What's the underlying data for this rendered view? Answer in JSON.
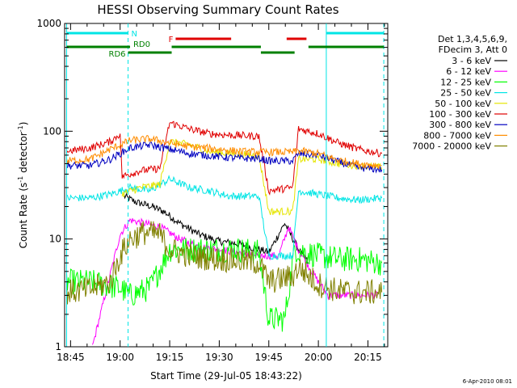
{
  "chart_data": {
    "type": "line",
    "title": "HESSI Observing Summary Count Rates",
    "xlabel": "Start Time (29-Jul-05 18:43:22)",
    "ylabel_prefix": "Count Rate (s",
    "ylabel_mid": " detector",
    "ylabel_suffix": ")",
    "ylabel_sup": "-1",
    "y_scale": "log",
    "ylim": [
      1,
      1000
    ],
    "xlim_minutes": [
      18.72,
      20.35
    ],
    "x_tick_labels": [
      "18:45",
      "19:00",
      "19:15",
      "19:30",
      "19:45",
      "20:00",
      "20:15"
    ],
    "x_tick_values": [
      18.75,
      19.0,
      19.25,
      19.5,
      19.75,
      20.0,
      20.25
    ],
    "y_tick_labels": [
      "1",
      "10",
      "100",
      "1000"
    ],
    "y_tick_values": [
      1,
      10,
      100,
      1000
    ],
    "legend_header": [
      "Det 1,3,4,5,6,9,",
      "FDecim 3, Att 0"
    ],
    "legend_placement": "right",
    "timestamp": "6-Apr-2010 08:01",
    "markers": {
      "N": {
        "label": "N",
        "color": "#00e5e5",
        "intervals": [
          [
            18.73,
            19.04
          ],
          [
            20.04,
            20.33
          ]
        ]
      },
      "F": {
        "label": "F",
        "color": "#e00000",
        "intervals": [
          [
            19.28,
            19.56
          ],
          [
            19.84,
            19.94
          ]
        ]
      },
      "RD0": {
        "label": "RD0",
        "color": "#008000",
        "intervals": [
          [
            18.73,
            19.05
          ],
          [
            19.26,
            19.71
          ],
          [
            19.95,
            20.33
          ]
        ]
      },
      "RD6": {
        "label": "RD6",
        "color": "#008000",
        "intervals": [
          [
            19.04,
            19.26
          ],
          [
            19.71,
            19.88
          ]
        ]
      },
      "night_boundaries": [
        18.73,
        20.04
      ],
      "saa_dashed": [
        19.04,
        20.33
      ]
    },
    "series": [
      {
        "name": "3 - 6 keV",
        "color": "#000000",
        "points": [
          [
            19.02,
            25
          ],
          [
            19.08,
            22
          ],
          [
            19.16,
            20
          ],
          [
            19.22,
            18
          ],
          [
            19.3,
            14
          ],
          [
            19.4,
            11
          ],
          [
            19.5,
            9.5
          ],
          [
            19.6,
            9
          ],
          [
            19.7,
            8
          ],
          [
            19.75,
            7.5
          ],
          [
            19.83,
            14
          ],
          [
            19.9,
            8
          ],
          [
            19.95,
            6
          ]
        ]
      },
      {
        "name": "6 - 12 keV",
        "color": "#ff00ff",
        "points": [
          [
            18.86,
            1
          ],
          [
            19.0,
            11
          ],
          [
            19.05,
            15
          ],
          [
            19.12,
            14
          ],
          [
            19.2,
            13
          ],
          [
            19.3,
            10
          ],
          [
            19.4,
            8.5
          ],
          [
            19.5,
            8
          ],
          [
            19.6,
            7.5
          ],
          [
            19.7,
            7
          ],
          [
            19.8,
            7
          ],
          [
            19.85,
            13
          ],
          [
            19.9,
            8
          ],
          [
            20.0,
            4
          ],
          [
            20.05,
            3
          ],
          [
            20.15,
            3
          ],
          [
            20.3,
            3
          ]
        ]
      },
      {
        "name": "12 - 25 keV",
        "color": "#00ff00",
        "points": [
          [
            18.73,
            4
          ],
          [
            18.85,
            4
          ],
          [
            19.0,
            3.5
          ],
          [
            19.05,
            3
          ],
          [
            19.15,
            3.5
          ],
          [
            19.25,
            8
          ],
          [
            19.4,
            8
          ],
          [
            19.6,
            8
          ],
          [
            19.7,
            7.5
          ],
          [
            19.75,
            1.8
          ],
          [
            19.83,
            1.8
          ],
          [
            19.88,
            8
          ],
          [
            20.0,
            7
          ],
          [
            20.1,
            6.5
          ],
          [
            20.2,
            6.5
          ],
          [
            20.32,
            6
          ]
        ]
      },
      {
        "name": "25 - 50 keV",
        "color": "#00e5e5",
        "points": [
          [
            18.73,
            24
          ],
          [
            18.85,
            24
          ],
          [
            18.95,
            26
          ],
          [
            19.05,
            30
          ],
          [
            19.15,
            28
          ],
          [
            19.25,
            36
          ],
          [
            19.35,
            30
          ],
          [
            19.45,
            28
          ],
          [
            19.55,
            25
          ],
          [
            19.7,
            25
          ],
          [
            19.75,
            7
          ],
          [
            19.87,
            7
          ],
          [
            19.9,
            28
          ],
          [
            20.0,
            26
          ],
          [
            20.1,
            24
          ],
          [
            20.2,
            23
          ],
          [
            20.32,
            24
          ]
        ]
      },
      {
        "name": "50 - 100 keV",
        "color": "#e5e500",
        "points": [
          [
            19.01,
            26
          ],
          [
            19.1,
            30
          ],
          [
            19.2,
            32
          ],
          [
            19.25,
            80
          ],
          [
            19.35,
            75
          ],
          [
            19.45,
            65
          ],
          [
            19.55,
            62
          ],
          [
            19.7,
            60
          ],
          [
            19.75,
            18
          ],
          [
            19.87,
            18
          ],
          [
            19.9,
            55
          ],
          [
            20.0,
            55
          ],
          [
            20.1,
            50
          ],
          [
            20.2,
            48
          ],
          [
            20.32,
            46
          ]
        ]
      },
      {
        "name": "100 - 300 keV",
        "color": "#e00000",
        "points": [
          [
            18.73,
            65
          ],
          [
            18.85,
            70
          ],
          [
            18.95,
            80
          ],
          [
            19.0,
            95
          ],
          [
            19.01,
            38
          ],
          [
            19.1,
            43
          ],
          [
            19.2,
            45
          ],
          [
            19.25,
            120
          ],
          [
            19.35,
            105
          ],
          [
            19.45,
            95
          ],
          [
            19.55,
            92
          ],
          [
            19.7,
            90
          ],
          [
            19.75,
            28
          ],
          [
            19.87,
            30
          ],
          [
            19.9,
            105
          ],
          [
            20.0,
            95
          ],
          [
            20.1,
            78
          ],
          [
            20.2,
            68
          ],
          [
            20.32,
            62
          ]
        ]
      },
      {
        "name": "300 - 800 keV",
        "color": "#0000c0",
        "points": [
          [
            18.73,
            48
          ],
          [
            18.85,
            48
          ],
          [
            18.95,
            55
          ],
          [
            19.05,
            70
          ],
          [
            19.15,
            75
          ],
          [
            19.25,
            68
          ],
          [
            19.35,
            62
          ],
          [
            19.5,
            58
          ],
          [
            19.6,
            56
          ],
          [
            19.7,
            56
          ],
          [
            19.75,
            53
          ],
          [
            19.87,
            53
          ],
          [
            19.9,
            62
          ],
          [
            20.0,
            60
          ],
          [
            20.1,
            52
          ],
          [
            20.2,
            46
          ],
          [
            20.32,
            44
          ]
        ]
      },
      {
        "name": "800 - 7000 keV",
        "color": "#ff8c00",
        "points": [
          [
            18.73,
            53
          ],
          [
            18.85,
            55
          ],
          [
            18.95,
            68
          ],
          [
            19.05,
            82
          ],
          [
            19.15,
            85
          ],
          [
            19.25,
            78
          ],
          [
            19.35,
            72
          ],
          [
            19.5,
            68
          ],
          [
            19.6,
            65
          ],
          [
            19.7,
            64
          ],
          [
            19.75,
            64
          ],
          [
            19.87,
            64
          ],
          [
            19.9,
            66
          ],
          [
            20.0,
            62
          ],
          [
            20.1,
            54
          ],
          [
            20.2,
            50
          ],
          [
            20.32,
            48
          ]
        ]
      },
      {
        "name": "7000 - 20000 keV",
        "color": "#808000",
        "points": [
          [
            18.73,
            3.2
          ],
          [
            18.85,
            3.4
          ],
          [
            18.95,
            4
          ],
          [
            19.0,
            7
          ],
          [
            19.05,
            10
          ],
          [
            19.12,
            11.5
          ],
          [
            19.2,
            11
          ],
          [
            19.25,
            8
          ],
          [
            19.35,
            7
          ],
          [
            19.5,
            6.5
          ],
          [
            19.6,
            6.3
          ],
          [
            19.7,
            6
          ],
          [
            19.75,
            4
          ],
          [
            19.87,
            4.5
          ],
          [
            19.9,
            5.5
          ],
          [
            20.0,
            3.8
          ],
          [
            20.1,
            3.3
          ],
          [
            20.2,
            3.2
          ],
          [
            20.32,
            3.2
          ]
        ]
      }
    ]
  }
}
